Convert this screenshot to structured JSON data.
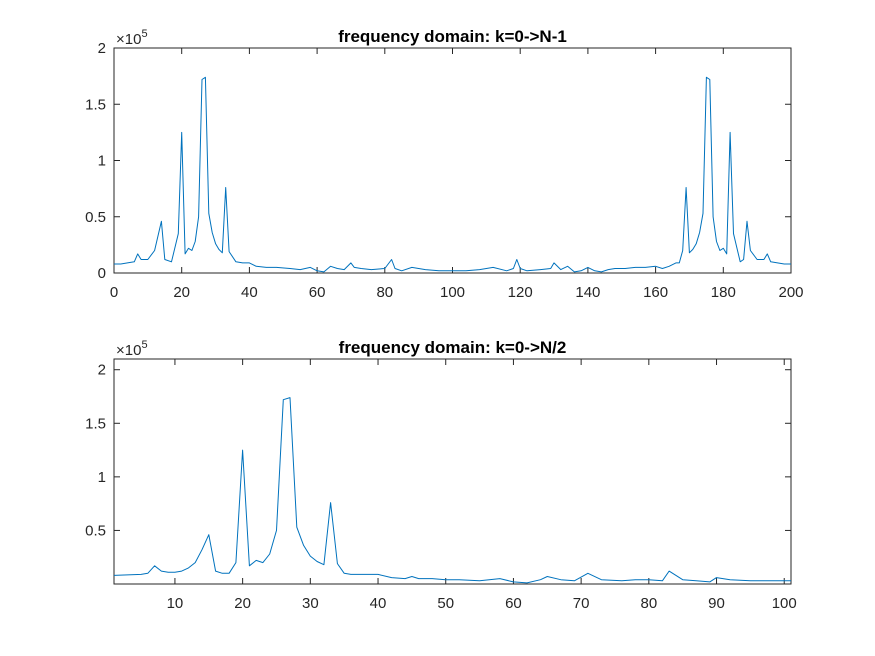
{
  "chart_data": [
    {
      "type": "line",
      "title": "frequency domain: k=0->N-1",
      "xlabel": "",
      "ylabel": "",
      "xlim": [
        0,
        200
      ],
      "ylim": [
        0,
        2
      ],
      "y_exponent_label": "×10",
      "y_exponent_power": "5",
      "xticks": [
        "0",
        "20",
        "40",
        "60",
        "80",
        "100",
        "120",
        "140",
        "160",
        "180",
        "200"
      ],
      "yticks": [
        "0",
        "0.5",
        "1",
        "1.5",
        "2"
      ],
      "grid": false,
      "line_color": "#0072BD",
      "series": [
        {
          "x": [
            0,
            2,
            4,
            6,
            7,
            8,
            10,
            12,
            14,
            15,
            17,
            19,
            20,
            21,
            22,
            23,
            24,
            25,
            26,
            27,
            28,
            29,
            30,
            31,
            32,
            33,
            34,
            36,
            38,
            40,
            42,
            45,
            48,
            52,
            55,
            58,
            60,
            62,
            64,
            66,
            68,
            70,
            71,
            73,
            76,
            80,
            82,
            83,
            85,
            88,
            92,
            96,
            100,
            104,
            108,
            112,
            116,
            118,
            119,
            120,
            122,
            126,
            129,
            130,
            132,
            134,
            136,
            138,
            140,
            142,
            144,
            146,
            148,
            151,
            154,
            157,
            160,
            162,
            164,
            166,
            167,
            168,
            169,
            170,
            171,
            172,
            173,
            174,
            175,
            176,
            177,
            178,
            179,
            180,
            181,
            182,
            183,
            185,
            186,
            187,
            188,
            190,
            192,
            193,
            194,
            196,
            198,
            200
          ],
          "y": [
            0.08,
            0.08,
            0.09,
            0.1,
            0.17,
            0.12,
            0.12,
            0.2,
            0.46,
            0.12,
            0.1,
            0.35,
            1.25,
            0.17,
            0.22,
            0.2,
            0.28,
            0.5,
            1.72,
            1.74,
            0.53,
            0.36,
            0.26,
            0.21,
            0.18,
            0.76,
            0.19,
            0.1,
            0.09,
            0.09,
            0.06,
            0.05,
            0.05,
            0.04,
            0.03,
            0.05,
            0.02,
            0.01,
            0.06,
            0.04,
            0.03,
            0.09,
            0.05,
            0.04,
            0.03,
            0.04,
            0.12,
            0.04,
            0.02,
            0.05,
            0.03,
            0.02,
            0.02,
            0.02,
            0.03,
            0.05,
            0.02,
            0.04,
            0.12,
            0.04,
            0.02,
            0.03,
            0.04,
            0.09,
            0.03,
            0.06,
            0.01,
            0.02,
            0.05,
            0.02,
            0.01,
            0.03,
            0.04,
            0.04,
            0.05,
            0.05,
            0.06,
            0.04,
            0.06,
            0.09,
            0.09,
            0.2,
            0.76,
            0.18,
            0.21,
            0.26,
            0.36,
            0.53,
            1.74,
            1.72,
            0.5,
            0.28,
            0.2,
            0.22,
            0.17,
            1.25,
            0.35,
            0.1,
            0.12,
            0.46,
            0.2,
            0.12,
            0.12,
            0.17,
            0.1,
            0.09,
            0.08,
            0.08
          ]
        }
      ]
    },
    {
      "type": "line",
      "title": "frequency domain: k=0->N/2",
      "xlabel": "",
      "ylabel": "",
      "xlim": [
        1,
        101
      ],
      "ylim": [
        0,
        2.1
      ],
      "y_exponent_label": "×10",
      "y_exponent_power": "5",
      "xticks": [
        "10",
        "20",
        "30",
        "40",
        "50",
        "60",
        "70",
        "80",
        "90",
        "100"
      ],
      "yticks": [
        "0.5",
        "1",
        "1.5",
        "2"
      ],
      "grid": false,
      "line_color": "#0072BD",
      "series": [
        {
          "x": [
            1,
            3,
            5,
            6,
            7,
            8,
            9,
            10,
            11,
            12,
            13,
            14,
            15,
            16,
            17,
            18,
            19,
            20,
            21,
            22,
            23,
            24,
            25,
            26,
            27,
            28,
            29,
            30,
            31,
            32,
            33,
            34,
            35,
            36,
            37,
            38,
            39,
            40,
            42,
            44,
            45,
            46,
            48,
            50,
            52,
            55,
            58,
            60,
            62,
            64,
            65,
            67,
            69,
            71,
            73,
            76,
            78,
            80,
            82,
            83,
            85,
            87,
            89,
            90,
            92,
            95,
            98,
            101
          ],
          "y": [
            0.08,
            0.085,
            0.09,
            0.1,
            0.17,
            0.12,
            0.11,
            0.11,
            0.12,
            0.15,
            0.2,
            0.32,
            0.46,
            0.12,
            0.1,
            0.1,
            0.2,
            1.25,
            0.17,
            0.22,
            0.2,
            0.28,
            0.5,
            1.72,
            1.74,
            0.53,
            0.36,
            0.26,
            0.21,
            0.18,
            0.76,
            0.19,
            0.1,
            0.09,
            0.09,
            0.09,
            0.09,
            0.09,
            0.06,
            0.05,
            0.07,
            0.05,
            0.05,
            0.04,
            0.04,
            0.03,
            0.05,
            0.02,
            0.01,
            0.04,
            0.07,
            0.04,
            0.03,
            0.1,
            0.04,
            0.03,
            0.04,
            0.04,
            0.03,
            0.12,
            0.04,
            0.03,
            0.02,
            0.06,
            0.04,
            0.03,
            0.03,
            0.03
          ]
        }
      ]
    }
  ]
}
